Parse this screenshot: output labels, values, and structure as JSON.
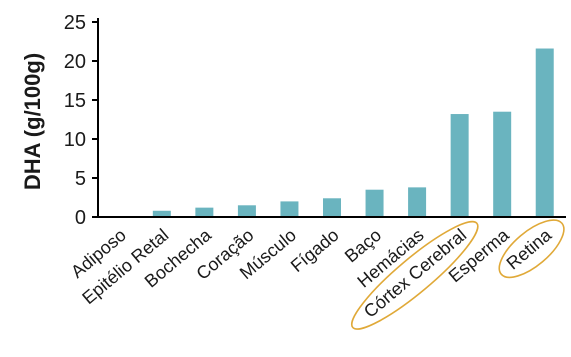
{
  "chart_data": {
    "type": "bar",
    "categories": [
      "Adiposo",
      "Epitélio Retal",
      "Bochecha",
      "Coração",
      "Músculo",
      "Fígado",
      "Baço",
      "Hemácias",
      "Córtex Cerebral",
      "Esperma",
      "Retina"
    ],
    "values": [
      0,
      0.8,
      1.2,
      1.5,
      2.0,
      2.4,
      3.5,
      3.8,
      13.2,
      13.5,
      21.6
    ],
    "title": "",
    "xlabel": "",
    "ylabel": "DHA (g/100g)",
    "ylim": [
      0,
      25
    ],
    "yticks": [
      "0",
      "5",
      "10",
      "15",
      "20",
      "25"
    ],
    "grid": false,
    "legend": "none",
    "highlighted_categories": [
      "Córtex Cerebral",
      "Retina"
    ]
  },
  "colors": {
    "bar": "#6ab4bf",
    "axis": "#000000",
    "highlight_outline": "#e0a938",
    "text": "#1a1a1a"
  }
}
